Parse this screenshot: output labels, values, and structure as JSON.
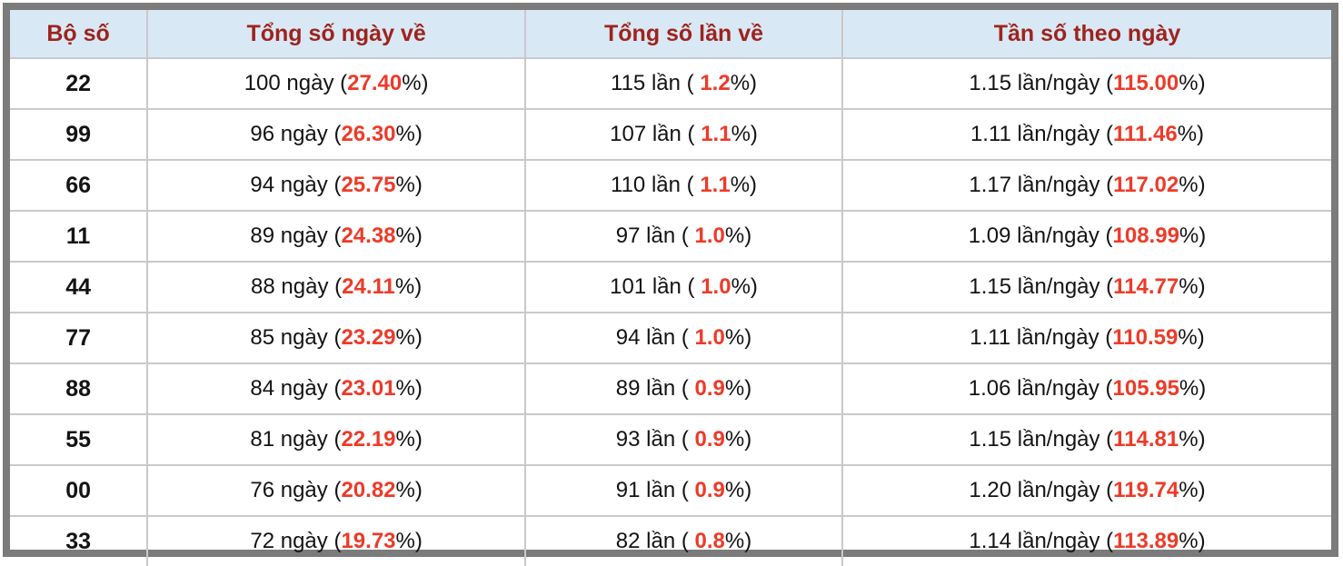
{
  "colors": {
    "header_bg": "#d9e8f5",
    "header_text": "#9e231c",
    "highlight_red": "#ee3a28",
    "border_outer": "#7b7b7b",
    "grid_line": "#c9c9c9",
    "text": "#131313"
  },
  "table": {
    "headers": [
      "Bộ số",
      "Tổng số ngày về",
      "Tổng số lần về",
      "Tần số theo ngày"
    ],
    "rows": [
      {
        "pair": "22",
        "days_prefix": "100 ngày (",
        "days_value": "27.40",
        "days_suffix": "%)",
        "times_prefix": "115 lần ( ",
        "times_value": "1.2",
        "times_suffix": "%)",
        "freq_prefix": "1.15 lần/ngày (",
        "freq_value": "115.00",
        "freq_suffix": "%)"
      },
      {
        "pair": "99",
        "days_prefix": "96 ngày (",
        "days_value": "26.30",
        "days_suffix": "%)",
        "times_prefix": "107 lần ( ",
        "times_value": "1.1",
        "times_suffix": "%)",
        "freq_prefix": "1.11 lần/ngày (",
        "freq_value": "111.46",
        "freq_suffix": "%)"
      },
      {
        "pair": "66",
        "days_prefix": "94 ngày (",
        "days_value": "25.75",
        "days_suffix": "%)",
        "times_prefix": "110 lần ( ",
        "times_value": "1.1",
        "times_suffix": "%)",
        "freq_prefix": "1.17 lần/ngày (",
        "freq_value": "117.02",
        "freq_suffix": "%)"
      },
      {
        "pair": "11",
        "days_prefix": "89 ngày (",
        "days_value": "24.38",
        "days_suffix": "%)",
        "times_prefix": "97 lần ( ",
        "times_value": "1.0",
        "times_suffix": "%)",
        "freq_prefix": "1.09 lần/ngày (",
        "freq_value": "108.99",
        "freq_suffix": "%)"
      },
      {
        "pair": "44",
        "days_prefix": "88 ngày (",
        "days_value": "24.11",
        "days_suffix": "%)",
        "times_prefix": "101 lần ( ",
        "times_value": "1.0",
        "times_suffix": "%)",
        "freq_prefix": "1.15 lần/ngày (",
        "freq_value": "114.77",
        "freq_suffix": "%)"
      },
      {
        "pair": "77",
        "days_prefix": "85 ngày (",
        "days_value": "23.29",
        "days_suffix": "%)",
        "times_prefix": "94 lần ( ",
        "times_value": "1.0",
        "times_suffix": "%)",
        "freq_prefix": "1.11 lần/ngày (",
        "freq_value": "110.59",
        "freq_suffix": "%)"
      },
      {
        "pair": "88",
        "days_prefix": "84 ngày (",
        "days_value": "23.01",
        "days_suffix": "%)",
        "times_prefix": "89 lần ( ",
        "times_value": "0.9",
        "times_suffix": "%)",
        "freq_prefix": "1.06 lần/ngày (",
        "freq_value": "105.95",
        "freq_suffix": "%)"
      },
      {
        "pair": "55",
        "days_prefix": "81 ngày (",
        "days_value": "22.19",
        "days_suffix": "%)",
        "times_prefix": "93 lần ( ",
        "times_value": "0.9",
        "times_suffix": "%)",
        "freq_prefix": "1.15 lần/ngày (",
        "freq_value": "114.81",
        "freq_suffix": "%)"
      },
      {
        "pair": "00",
        "days_prefix": "76 ngày (",
        "days_value": "20.82",
        "days_suffix": "%)",
        "times_prefix": "91 lần ( ",
        "times_value": "0.9",
        "times_suffix": "%)",
        "freq_prefix": "1.20 lần/ngày (",
        "freq_value": "119.74",
        "freq_suffix": "%)"
      },
      {
        "pair": "33",
        "days_prefix": "72 ngày (",
        "days_value": "19.73",
        "days_suffix": "%)",
        "times_prefix": "82 lần ( ",
        "times_value": "0.8",
        "times_suffix": "%)",
        "freq_prefix": "1.14 lần/ngày (",
        "freq_value": "113.89",
        "freq_suffix": "%)"
      }
    ]
  }
}
